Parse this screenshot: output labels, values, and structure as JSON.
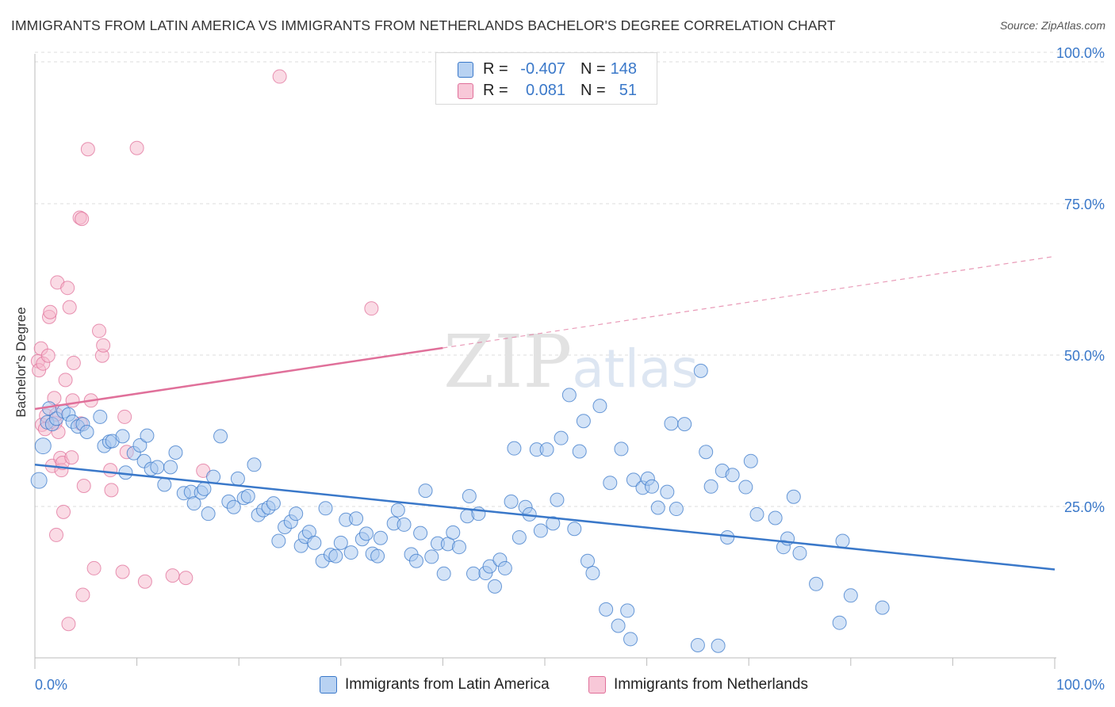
{
  "title": "IMMIGRANTS FROM LATIN AMERICA VS IMMIGRANTS FROM NETHERLANDS BACHELOR'S DEGREE CORRELATION CHART",
  "source": "Source: ZipAtlas.com",
  "watermark": "ZIPatlas",
  "colors": {
    "blue": "#3a78c9",
    "blue_fill": "#a8c8f0",
    "pink": "#e0709a",
    "pink_fill": "#f5b8cc",
    "grid": "#dddddd",
    "tick_label": "#3a78c9"
  },
  "legend": {
    "rows": [
      {
        "r_label": "R =",
        "r_value": "-0.407",
        "n_label": "N =",
        "n_value": "148"
      },
      {
        "r_label": "R =",
        "r_value": "0.081",
        "n_label": "N =",
        "n_value": "51"
      }
    ]
  },
  "chart_data": {
    "type": "scatter",
    "title": "IMMIGRANTS FROM LATIN AMERICA VS IMMIGRANTS FROM NETHERLANDS BACHELOR'S DEGREE CORRELATION CHART",
    "xlabel": "",
    "ylabel": "Bachelor's Degree",
    "xlim": [
      0,
      100
    ],
    "ylim": [
      0,
      105
    ],
    "x_tick_labels": [
      "0.0%",
      "100.0%"
    ],
    "y_ticks": [
      25,
      50,
      75,
      100
    ],
    "y_tick_labels": [
      "25.0%",
      "50.0%",
      "75.0%",
      "100.0%"
    ],
    "grid": true,
    "legend_position": "top-center",
    "series": [
      {
        "name": "Immigrants from Latin America",
        "color": "#3a78c9",
        "R": -0.407,
        "N": 148,
        "trend": {
          "x": [
            0,
            100
          ],
          "y": [
            31.9,
            14.6
          ],
          "style": "solid"
        },
        "points": [
          [
            0.4,
            29.3
          ],
          [
            0.8,
            35.0
          ],
          [
            1.2,
            38.9
          ],
          [
            1.4,
            41.2
          ],
          [
            1.7,
            38.6
          ],
          [
            2.1,
            39.5
          ],
          [
            2.8,
            40.7
          ],
          [
            3.3,
            40.2
          ],
          [
            3.7,
            39.0
          ],
          [
            4.2,
            38.2
          ],
          [
            4.7,
            38.6
          ],
          [
            5.1,
            37.3
          ],
          [
            6.4,
            39.8
          ],
          [
            6.8,
            35.0
          ],
          [
            7.3,
            35.7
          ],
          [
            7.6,
            35.8
          ],
          [
            8.6,
            36.6
          ],
          [
            8.9,
            30.6
          ],
          [
            9.7,
            33.8
          ],
          [
            10.3,
            35.1
          ],
          [
            10.7,
            32.5
          ],
          [
            11.0,
            36.7
          ],
          [
            11.4,
            31.2
          ],
          [
            12.0,
            31.5
          ],
          [
            12.7,
            28.6
          ],
          [
            13.3,
            31.5
          ],
          [
            13.8,
            33.9
          ],
          [
            14.6,
            27.2
          ],
          [
            15.3,
            27.4
          ],
          [
            15.6,
            25.5
          ],
          [
            16.3,
            27.3
          ],
          [
            16.6,
            27.9
          ],
          [
            17.0,
            23.8
          ],
          [
            17.5,
            29.9
          ],
          [
            18.2,
            36.6
          ],
          [
            19.0,
            25.8
          ],
          [
            19.5,
            24.9
          ],
          [
            19.9,
            29.6
          ],
          [
            20.5,
            26.4
          ],
          [
            20.9,
            26.7
          ],
          [
            21.5,
            31.9
          ],
          [
            21.9,
            23.6
          ],
          [
            22.4,
            24.4
          ],
          [
            22.9,
            24.8
          ],
          [
            23.4,
            25.5
          ],
          [
            23.9,
            19.3
          ],
          [
            24.5,
            21.6
          ],
          [
            25.1,
            22.5
          ],
          [
            25.6,
            23.8
          ],
          [
            26.1,
            18.5
          ],
          [
            26.5,
            20.0
          ],
          [
            26.9,
            20.8
          ],
          [
            27.4,
            19.0
          ],
          [
            28.2,
            16.0
          ],
          [
            28.5,
            24.7
          ],
          [
            29.0,
            17.0
          ],
          [
            29.5,
            16.8
          ],
          [
            30.0,
            19.0
          ],
          [
            30.5,
            22.8
          ],
          [
            31.0,
            17.4
          ],
          [
            31.5,
            23.0
          ],
          [
            32.1,
            19.6
          ],
          [
            32.5,
            20.5
          ],
          [
            33.1,
            17.2
          ],
          [
            33.6,
            16.8
          ],
          [
            33.9,
            19.8
          ],
          [
            35.2,
            22.2
          ],
          [
            35.6,
            24.4
          ],
          [
            36.2,
            22.0
          ],
          [
            36.9,
            17.1
          ],
          [
            37.4,
            16.0
          ],
          [
            37.8,
            20.6
          ],
          [
            38.3,
            27.6
          ],
          [
            38.9,
            16.7
          ],
          [
            39.5,
            18.9
          ],
          [
            40.1,
            13.9
          ],
          [
            40.5,
            18.8
          ],
          [
            41.0,
            20.7
          ],
          [
            41.6,
            18.3
          ],
          [
            42.4,
            23.4
          ],
          [
            42.6,
            26.7
          ],
          [
            43.0,
            13.9
          ],
          [
            43.5,
            23.8
          ],
          [
            44.2,
            14.0
          ],
          [
            44.6,
            15.1
          ],
          [
            45.1,
            11.8
          ],
          [
            45.6,
            16.2
          ],
          [
            46.1,
            14.8
          ],
          [
            46.7,
            25.8
          ],
          [
            47.0,
            34.6
          ],
          [
            47.5,
            19.9
          ],
          [
            48.1,
            24.9
          ],
          [
            48.5,
            23.7
          ],
          [
            49.2,
            34.4
          ],
          [
            49.6,
            21.0
          ],
          [
            50.2,
            34.4
          ],
          [
            50.8,
            22.2
          ],
          [
            51.2,
            26.1
          ],
          [
            51.6,
            36.3
          ],
          [
            52.4,
            43.4
          ],
          [
            52.9,
            21.3
          ],
          [
            53.4,
            34.1
          ],
          [
            53.8,
            39.1
          ],
          [
            54.2,
            16.0
          ],
          [
            54.7,
            14.0
          ],
          [
            55.4,
            41.6
          ],
          [
            56.0,
            8.0
          ],
          [
            56.4,
            28.9
          ],
          [
            57.2,
            5.3
          ],
          [
            57.5,
            34.5
          ],
          [
            58.1,
            7.8
          ],
          [
            58.4,
            3.1
          ],
          [
            58.7,
            29.4
          ],
          [
            59.6,
            28.1
          ],
          [
            60.1,
            29.6
          ],
          [
            60.5,
            28.3
          ],
          [
            61.1,
            24.8
          ],
          [
            62.0,
            27.4
          ],
          [
            62.4,
            38.7
          ],
          [
            62.9,
            24.6
          ],
          [
            63.7,
            38.6
          ],
          [
            65.0,
            2.1
          ],
          [
            65.3,
            47.4
          ],
          [
            65.8,
            34.0
          ],
          [
            66.3,
            28.3
          ],
          [
            67.0,
            2.0
          ],
          [
            67.4,
            30.9
          ],
          [
            67.9,
            19.9
          ],
          [
            68.4,
            30.2
          ],
          [
            69.7,
            28.2
          ],
          [
            70.2,
            32.5
          ],
          [
            70.8,
            23.7
          ],
          [
            72.6,
            23.1
          ],
          [
            73.4,
            18.3
          ],
          [
            73.8,
            19.7
          ],
          [
            74.4,
            26.6
          ],
          [
            75.0,
            17.3
          ],
          [
            76.6,
            12.2
          ],
          [
            78.9,
            5.8
          ],
          [
            79.2,
            19.3
          ],
          [
            80.0,
            10.3
          ],
          [
            83.1,
            8.3
          ]
        ]
      },
      {
        "name": "Immigrants from Netherlands",
        "color": "#e0709a",
        "R": 0.081,
        "N": 51,
        "trend": {
          "x": [
            0,
            100
          ],
          "y": [
            41.1,
            66.3
          ],
          "style": "solid-then-dashed",
          "solid_until_x": 40
        },
        "points": [
          [
            0.3,
            49.0
          ],
          [
            0.4,
            47.5
          ],
          [
            0.6,
            51.1
          ],
          [
            0.7,
            38.5
          ],
          [
            0.8,
            48.6
          ],
          [
            1.0,
            37.8
          ],
          [
            1.1,
            40.0
          ],
          [
            1.3,
            49.9
          ],
          [
            1.4,
            56.3
          ],
          [
            1.5,
            57.1
          ],
          [
            1.7,
            31.7
          ],
          [
            1.9,
            42.9
          ],
          [
            2.0,
            38.8
          ],
          [
            2.1,
            40.2
          ],
          [
            2.1,
            20.3
          ],
          [
            2.2,
            62.0
          ],
          [
            2.3,
            37.3
          ],
          [
            2.5,
            33.0
          ],
          [
            2.6,
            31.0
          ],
          [
            2.7,
            32.2
          ],
          [
            2.8,
            24.1
          ],
          [
            3.0,
            45.9
          ],
          [
            3.2,
            61.1
          ],
          [
            3.3,
            5.6
          ],
          [
            3.4,
            57.9
          ],
          [
            3.6,
            33.1
          ],
          [
            3.7,
            42.5
          ],
          [
            3.8,
            48.7
          ],
          [
            4.4,
            72.7
          ],
          [
            4.5,
            38.7
          ],
          [
            4.6,
            72.5
          ],
          [
            4.7,
            10.4
          ],
          [
            4.8,
            28.4
          ],
          [
            5.2,
            84.0
          ],
          [
            5.5,
            42.5
          ],
          [
            5.8,
            14.8
          ],
          [
            6.3,
            54.0
          ],
          [
            6.6,
            49.9
          ],
          [
            6.7,
            51.6
          ],
          [
            7.4,
            31.0
          ],
          [
            7.5,
            27.7
          ],
          [
            8.6,
            14.2
          ],
          [
            8.8,
            39.8
          ],
          [
            9.0,
            34.0
          ],
          [
            10.0,
            84.2
          ],
          [
            10.8,
            12.6
          ],
          [
            13.5,
            13.6
          ],
          [
            14.8,
            13.2
          ],
          [
            16.5,
            30.9
          ],
          [
            24.0,
            96.0
          ],
          [
            33.0,
            57.7
          ]
        ]
      }
    ]
  },
  "bottom_legend": {
    "items": [
      {
        "label": "Immigrants from Latin America"
      },
      {
        "label": "Immigrants from Netherlands"
      }
    ]
  }
}
